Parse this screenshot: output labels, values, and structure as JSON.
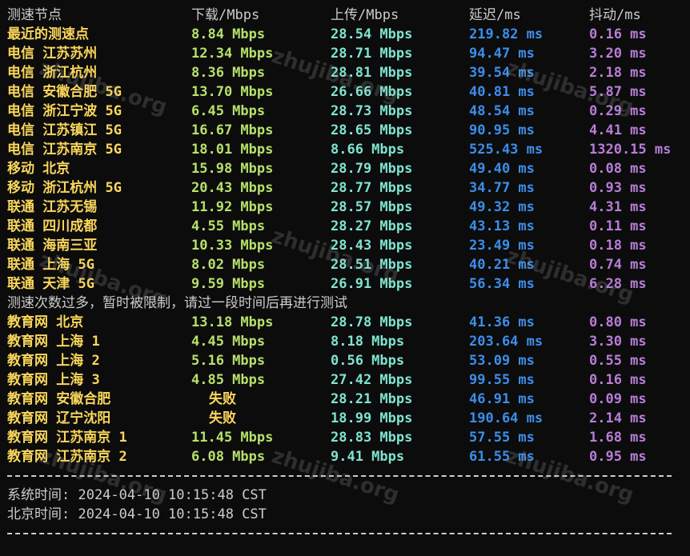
{
  "header": {
    "node": "测速节点",
    "download": "下载/Mbps",
    "upload": "上传/Mbps",
    "latency": "延迟/ms",
    "jitter": "抖动/ms"
  },
  "rows_group1": [
    {
      "node": "最近的测速点",
      "download": "8.84 Mbps",
      "upload": "28.54 Mbps",
      "latency": "219.82 ms",
      "jitter": "0.16 ms"
    },
    {
      "node": "电信 江苏苏州",
      "download": "12.34 Mbps",
      "upload": "28.71 Mbps",
      "latency": "94.47 ms",
      "jitter": "3.20 ms"
    },
    {
      "node": "电信 浙江杭州",
      "download": "8.36 Mbps",
      "upload": "28.81 Mbps",
      "latency": "39.54 ms",
      "jitter": "2.18 ms"
    },
    {
      "node": "电信 安徽合肥 5G",
      "download": "13.70 Mbps",
      "upload": "26.66 Mbps",
      "latency": "40.81 ms",
      "jitter": "5.87 ms"
    },
    {
      "node": "电信 浙江宁波 5G",
      "download": "6.45 Mbps",
      "upload": "28.73 Mbps",
      "latency": "48.54 ms",
      "jitter": "0.29 ms"
    },
    {
      "node": "电信 江苏镇江 5G",
      "download": "16.67 Mbps",
      "upload": "28.65 Mbps",
      "latency": "90.95 ms",
      "jitter": "4.41 ms"
    },
    {
      "node": "电信 江苏南京 5G",
      "download": "18.01 Mbps",
      "upload": "8.66 Mbps",
      "latency": "525.43 ms",
      "jitter": "1320.15 ms"
    },
    {
      "node": "移动 北京",
      "download": "15.98 Mbps",
      "upload": "28.79 Mbps",
      "latency": "49.40 ms",
      "jitter": "0.08 ms"
    },
    {
      "node": "移动 浙江杭州 5G",
      "download": "20.43 Mbps",
      "upload": "28.77 Mbps",
      "latency": "34.77 ms",
      "jitter": "0.93 ms"
    },
    {
      "node": "联通 江苏无锡",
      "download": "11.92 Mbps",
      "upload": "28.57 Mbps",
      "latency": "49.32 ms",
      "jitter": "4.31 ms"
    },
    {
      "node": "联通 四川成都",
      "download": "4.55 Mbps",
      "upload": "28.27 Mbps",
      "latency": "43.13 ms",
      "jitter": "0.11 ms"
    },
    {
      "node": "联通 海南三亚",
      "download": "10.33 Mbps",
      "upload": "28.43 Mbps",
      "latency": "23.49 ms",
      "jitter": "0.18 ms"
    },
    {
      "node": "联通 上海 5G",
      "download": "8.02 Mbps",
      "upload": "28.51 Mbps",
      "latency": "40.21 ms",
      "jitter": "0.74 ms"
    },
    {
      "node": "联通 天津 5G",
      "download": "9.59 Mbps",
      "upload": "26.91 Mbps",
      "latency": "56.34 ms",
      "jitter": "6.28 ms"
    }
  ],
  "notice": "测速次数过多，暂时被限制，请过一段时间后再进行测试",
  "rows_group2": [
    {
      "node": "教育网 北京",
      "download": "13.18 Mbps",
      "upload": "28.78 Mbps",
      "latency": "41.36 ms",
      "jitter": "0.80 ms"
    },
    {
      "node": "教育网 上海 1",
      "download": "4.45 Mbps",
      "upload": "8.18 Mbps",
      "latency": "203.64 ms",
      "jitter": "3.30 ms"
    },
    {
      "node": "教育网 上海 2",
      "download": "5.16 Mbps",
      "upload": "0.56 Mbps",
      "latency": "53.09 ms",
      "jitter": "0.55 ms"
    },
    {
      "node": "教育网 上海 3",
      "download": "4.85 Mbps",
      "upload": "27.42 Mbps",
      "latency": "99.55 ms",
      "jitter": "0.16 ms"
    },
    {
      "node": "教育网 安徽合肥",
      "download": "失败",
      "upload": "28.21 Mbps",
      "latency": "46.91 ms",
      "jitter": "0.09 ms"
    },
    {
      "node": "教育网 辽宁沈阳",
      "download": "失败",
      "upload": "18.99 Mbps",
      "latency": "190.64 ms",
      "jitter": "2.14 ms"
    },
    {
      "node": "教育网 江苏南京 1",
      "download": "11.45 Mbps",
      "upload": "28.83 Mbps",
      "latency": "57.55 ms",
      "jitter": "1.68 ms"
    },
    {
      "node": "教育网 江苏南京 2",
      "download": "6.08 Mbps",
      "upload": "9.41 Mbps",
      "latency": "61.55 ms",
      "jitter": "0.95 ms"
    }
  ],
  "system_time": "系统时间: 2024-04-10 10:15:48 CST",
  "beijing_time": "北京时间: 2024-04-10 10:15:48 CST",
  "watermark_text": "zhujiba.org",
  "colors": {
    "background": "#0c0c0c",
    "node": "#f9d65b",
    "download": "#b7e06b",
    "upload": "#7fe3d0",
    "latency": "#3b8eea",
    "jitter": "#b77dd8",
    "text": "#cccccc"
  }
}
